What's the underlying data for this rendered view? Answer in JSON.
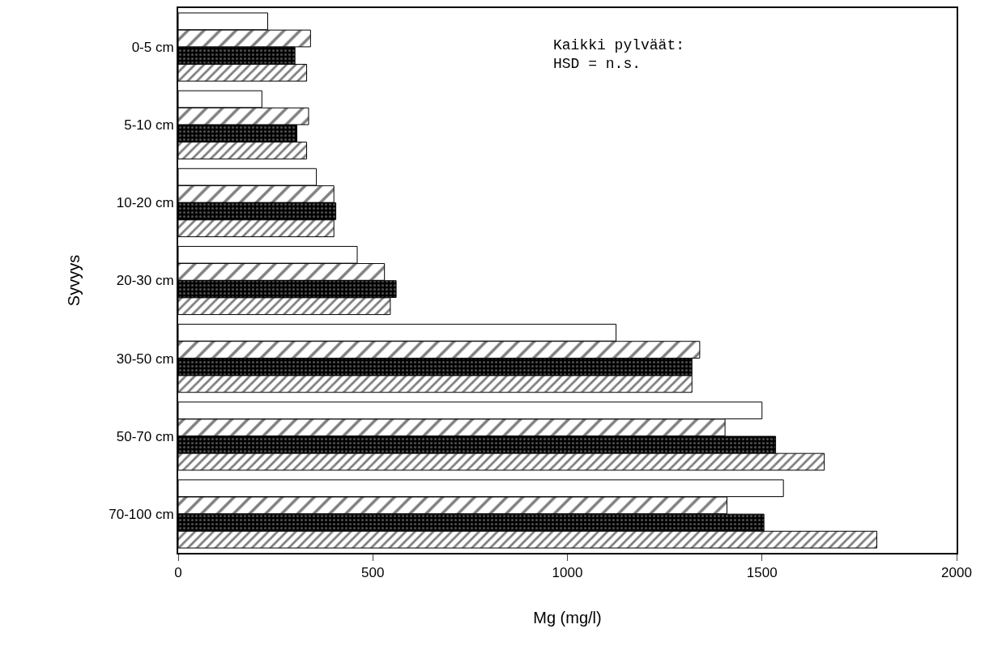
{
  "chart_data": {
    "type": "bar",
    "orientation": "horizontal",
    "xlabel": "Mg (mg/l)",
    "ylabel": "Syvyys",
    "categories": [
      "0-5 cm",
      "5-10 cm",
      "10-20 cm",
      "20-30 cm",
      "30-50 cm",
      "50-70 cm",
      "70-100 cm"
    ],
    "series": [
      {
        "color": "#ffffff",
        "values": [
          230,
          215,
          355,
          460,
          1125,
          1500,
          1555
        ]
      },
      {
        "color": "#000000",
        "values": [
          340,
          335,
          400,
          530,
          1340,
          1405,
          1410
        ]
      },
      {
        "color": "#000000",
        "values": [
          300,
          305,
          405,
          560,
          1320,
          1535,
          1505
        ]
      },
      {
        "color": "#000000",
        "values": [
          330,
          330,
          400,
          545,
          1320,
          1660,
          1795
        ]
      }
    ],
    "xlim": [
      0,
      2000
    ],
    "xticks": [
      0,
      500,
      1000,
      1500,
      2000
    ],
    "grid": false,
    "annotations": [
      "Kaikki pylväät:\nHSD = n.s."
    ]
  }
}
